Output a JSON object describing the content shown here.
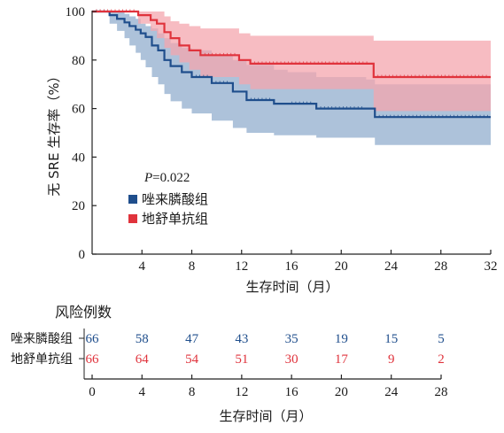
{
  "chart_data": {
    "type": "line",
    "subtype": "kaplan-meier",
    "ylabel": "无 SRE 生存率（%）",
    "xlabel": "生存时间（月）",
    "xlim": [
      0,
      32
    ],
    "ylim": [
      0,
      100
    ],
    "xticks": [
      4,
      8,
      12,
      16,
      20,
      24,
      28,
      32
    ],
    "yticks": [
      0,
      20,
      40,
      60,
      80,
      100
    ],
    "xtick_labels": [
      "4",
      "8",
      "12",
      "16",
      "20",
      "24",
      "28",
      "32"
    ],
    "ytick_labels": [
      "0",
      "20",
      "40",
      "60",
      "80",
      "100"
    ],
    "grid": false,
    "p_value_prefix": "P",
    "p_value": "=0.022",
    "legend_placement": "lower-left",
    "series": [
      {
        "name": "唑来膦酸组",
        "color": "#1f4e8c",
        "band_color": "#9fb7d3",
        "steps": [
          [
            0,
            100
          ],
          [
            1.4,
            98.5
          ],
          [
            2,
            97
          ],
          [
            2.6,
            95.5
          ],
          [
            3,
            94
          ],
          [
            3.5,
            92.5
          ],
          [
            3.9,
            91
          ],
          [
            4.3,
            89.5
          ],
          [
            4.8,
            86
          ],
          [
            5.3,
            84
          ],
          [
            5.8,
            80
          ],
          [
            6.3,
            77.5
          ],
          [
            7.2,
            75
          ],
          [
            8,
            73
          ],
          [
            9.6,
            70.5
          ],
          [
            11.3,
            67
          ],
          [
            12.4,
            63.5
          ],
          [
            14.6,
            62
          ],
          [
            15.7,
            62
          ],
          [
            18,
            60
          ],
          [
            22,
            60
          ],
          [
            22.7,
            56.5
          ],
          [
            32,
            56.5
          ]
        ],
        "ci_lower": [
          [
            0,
            100
          ],
          [
            1.4,
            95
          ],
          [
            2,
            92
          ],
          [
            2.6,
            89
          ],
          [
            3,
            86
          ],
          [
            3.5,
            83
          ],
          [
            3.9,
            80
          ],
          [
            4.3,
            77
          ],
          [
            4.8,
            73
          ],
          [
            5.3,
            70
          ],
          [
            5.8,
            66
          ],
          [
            6.3,
            63
          ],
          [
            7.2,
            60
          ],
          [
            8,
            58
          ],
          [
            9.6,
            55
          ],
          [
            11.3,
            52
          ],
          [
            12.4,
            50
          ],
          [
            14.6,
            49
          ],
          [
            18,
            48
          ],
          [
            22.7,
            45
          ],
          [
            32,
            45
          ]
        ],
        "ci_upper": [
          [
            0,
            100
          ],
          [
            1.4,
            100
          ],
          [
            2,
            100
          ],
          [
            2.6,
            99
          ],
          [
            3,
            98
          ],
          [
            3.5,
            97
          ],
          [
            3.9,
            95
          ],
          [
            4.3,
            94
          ],
          [
            4.8,
            93
          ],
          [
            5.3,
            91
          ],
          [
            5.8,
            89
          ],
          [
            6.3,
            87
          ],
          [
            7.2,
            85
          ],
          [
            8,
            84
          ],
          [
            9.6,
            82
          ],
          [
            11.3,
            80
          ],
          [
            12.4,
            78
          ],
          [
            14.6,
            76
          ],
          [
            15.7,
            75
          ],
          [
            18,
            73
          ],
          [
            22,
            72
          ],
          [
            22.7,
            70
          ],
          [
            32,
            70
          ]
        ]
      },
      {
        "name": "地舒单抗组",
        "color": "#e0333c",
        "band_color": "#f4a6ad",
        "steps": [
          [
            0,
            100
          ],
          [
            3.7,
            98.5
          ],
          [
            4.7,
            96.5
          ],
          [
            5.2,
            95
          ],
          [
            5.8,
            91.5
          ],
          [
            6.3,
            89
          ],
          [
            7,
            86
          ],
          [
            7.8,
            84
          ],
          [
            8.7,
            82
          ],
          [
            11.8,
            80
          ],
          [
            12.7,
            78.5
          ],
          [
            22.5,
            78.5
          ],
          [
            22.6,
            73
          ],
          [
            32,
            73
          ]
        ],
        "ci_lower": [
          [
            0,
            100
          ],
          [
            3.7,
            95
          ],
          [
            4.7,
            92
          ],
          [
            5.2,
            89
          ],
          [
            5.8,
            85
          ],
          [
            6.3,
            82
          ],
          [
            7,
            79
          ],
          [
            7.8,
            76
          ],
          [
            8.7,
            73
          ],
          [
            11.8,
            70
          ],
          [
            12.7,
            68
          ],
          [
            22.5,
            68
          ],
          [
            22.6,
            59
          ],
          [
            32,
            59
          ]
        ],
        "ci_upper": [
          [
            0,
            100
          ],
          [
            3.7,
            100
          ],
          [
            4.7,
            100
          ],
          [
            5.2,
            100
          ],
          [
            5.8,
            98
          ],
          [
            6.3,
            96
          ],
          [
            7,
            95
          ],
          [
            7.8,
            94
          ],
          [
            8.7,
            93
          ],
          [
            11.8,
            91
          ],
          [
            12.7,
            90
          ],
          [
            22.5,
            90
          ],
          [
            22.6,
            88
          ],
          [
            32,
            88
          ]
        ]
      }
    ]
  },
  "risk_table": {
    "title": "风险例数",
    "xlabel": "生存时间（月）",
    "xticks": [
      0,
      4,
      8,
      12,
      16,
      20,
      24,
      28
    ],
    "xtick_labels": [
      "0",
      "4",
      "8",
      "12",
      "16",
      "20",
      "24",
      "28"
    ],
    "rows": [
      {
        "label": "唑来膦酸组",
        "color": "#1f4e8c",
        "values": [
          "66",
          "58",
          "47",
          "43",
          "35",
          "19",
          "15",
          "5"
        ]
      },
      {
        "label": "地舒单抗组",
        "color": "#e0333c",
        "values": [
          "66",
          "64",
          "54",
          "51",
          "30",
          "17",
          "9",
          "2"
        ]
      }
    ]
  }
}
